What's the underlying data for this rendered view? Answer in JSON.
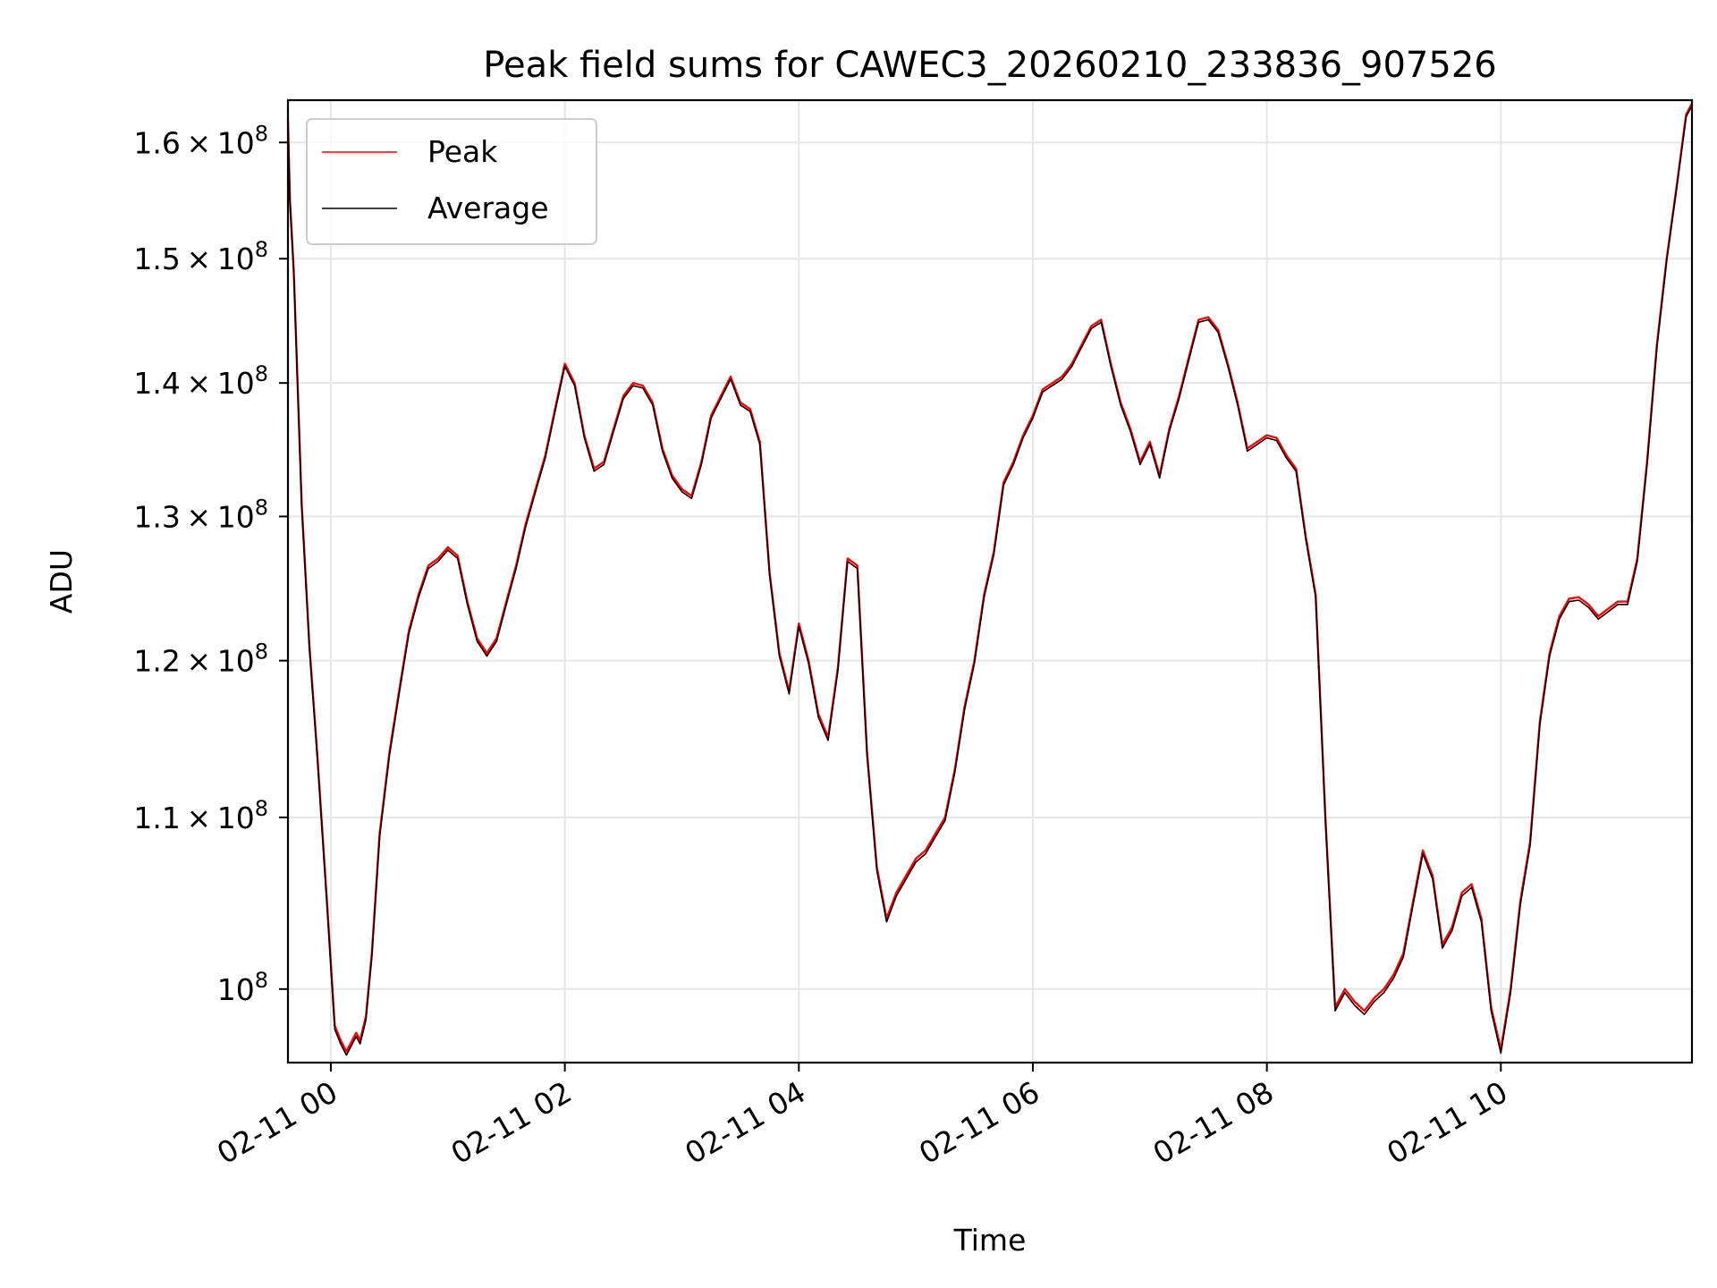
{
  "chart_data": {
    "type": "line",
    "title": "Peak field sums for CAWEC3_20260210_233836_907526",
    "xlabel": "Time",
    "ylabel": "ADU",
    "x_ticks": [
      {
        "x": "2026-02-11T00:00",
        "label": "02-11 00"
      },
      {
        "x": "2026-02-11T02:00",
        "label": "02-11 02"
      },
      {
        "x": "2026-02-11T04:00",
        "label": "02-11 04"
      },
      {
        "x": "2026-02-11T06:00",
        "label": "02-11 06"
      },
      {
        "x": "2026-02-11T08:00",
        "label": "02-11 08"
      },
      {
        "x": "2026-02-11T10:00",
        "label": "02-11 10"
      }
    ],
    "y_ticks": [
      {
        "value": 100000000,
        "mant": "",
        "exp": "8"
      },
      {
        "value": 110000000,
        "mant": "1.1",
        "exp": "8"
      },
      {
        "value": 120000000,
        "mant": "1.2",
        "exp": "8"
      },
      {
        "value": 130000000,
        "mant": "1.3",
        "exp": "8"
      },
      {
        "value": 140000000,
        "mant": "1.4",
        "exp": "8"
      },
      {
        "value": 150000000,
        "mant": "1.5",
        "exp": "8"
      },
      {
        "value": 160000000,
        "mant": "1.6",
        "exp": "8"
      }
    ],
    "xlim": [
      "2026-02-10T23:38",
      "2026-02-11T11:38"
    ],
    "ylim": [
      96000000,
      163800000
    ],
    "yscale": "log",
    "grid": true,
    "legend_position": "top-left",
    "series": [
      {
        "name": "Peak",
        "color": "#ff0000",
        "x": [
          "2026-02-10T23:38",
          "2026-02-10T23:39",
          "2026-02-10T23:41",
          "2026-02-10T23:45",
          "2026-02-10T23:49",
          "2026-02-10T23:53",
          "2026-02-10T23:58",
          "2026-02-11T00:02",
          "2026-02-11T00:05",
          "2026-02-11T00:08",
          "2026-02-11T00:10",
          "2026-02-11T00:13",
          "2026-02-11T00:15",
          "2026-02-11T00:18",
          "2026-02-11T00:21",
          "2026-02-11T00:25",
          "2026-02-11T00:30",
          "2026-02-11T00:35",
          "2026-02-11T00:40",
          "2026-02-11T00:45",
          "2026-02-11T00:50",
          "2026-02-11T00:55",
          "2026-02-11T01:00",
          "2026-02-11T01:05",
          "2026-02-11T01:10",
          "2026-02-11T01:15",
          "2026-02-11T01:20",
          "2026-02-11T01:25",
          "2026-02-11T01:30",
          "2026-02-11T01:35",
          "2026-02-11T01:40",
          "2026-02-11T01:45",
          "2026-02-11T01:50",
          "2026-02-11T01:55",
          "2026-02-11T02:00",
          "2026-02-11T02:05",
          "2026-02-11T02:10",
          "2026-02-11T02:15",
          "2026-02-11T02:20",
          "2026-02-11T02:25",
          "2026-02-11T02:30",
          "2026-02-11T02:35",
          "2026-02-11T02:40",
          "2026-02-11T02:45",
          "2026-02-11T02:50",
          "2026-02-11T02:55",
          "2026-02-11T03:00",
          "2026-02-11T03:05",
          "2026-02-11T03:10",
          "2026-02-11T03:15",
          "2026-02-11T03:20",
          "2026-02-11T03:25",
          "2026-02-11T03:30",
          "2026-02-11T03:35",
          "2026-02-11T03:40",
          "2026-02-11T03:45",
          "2026-02-11T03:50",
          "2026-02-11T03:55",
          "2026-02-11T04:00",
          "2026-02-11T04:05",
          "2026-02-11T04:10",
          "2026-02-11T04:15",
          "2026-02-11T04:20",
          "2026-02-11T04:25",
          "2026-02-11T04:30",
          "2026-02-11T04:35",
          "2026-02-11T04:40",
          "2026-02-11T04:45",
          "2026-02-11T04:50",
          "2026-02-11T04:55",
          "2026-02-11T05:00",
          "2026-02-11T05:05",
          "2026-02-11T05:10",
          "2026-02-11T05:15",
          "2026-02-11T05:20",
          "2026-02-11T05:25",
          "2026-02-11T05:30",
          "2026-02-11T05:35",
          "2026-02-11T05:40",
          "2026-02-11T05:45",
          "2026-02-11T05:50",
          "2026-02-11T05:55",
          "2026-02-11T06:00",
          "2026-02-11T06:05",
          "2026-02-11T06:10",
          "2026-02-11T06:15",
          "2026-02-11T06:20",
          "2026-02-11T06:25",
          "2026-02-11T06:30",
          "2026-02-11T06:35",
          "2026-02-11T06:40",
          "2026-02-11T06:45",
          "2026-02-11T06:50",
          "2026-02-11T06:55",
          "2026-02-11T07:00",
          "2026-02-11T07:05",
          "2026-02-11T07:10",
          "2026-02-11T07:15",
          "2026-02-11T07:20",
          "2026-02-11T07:25",
          "2026-02-11T07:30",
          "2026-02-11T07:35",
          "2026-02-11T07:40",
          "2026-02-11T07:45",
          "2026-02-11T07:50",
          "2026-02-11T07:55",
          "2026-02-11T08:00",
          "2026-02-11T08:05",
          "2026-02-11T08:10",
          "2026-02-11T08:15",
          "2026-02-11T08:20",
          "2026-02-11T08:25",
          "2026-02-11T08:30",
          "2026-02-11T08:35",
          "2026-02-11T08:40",
          "2026-02-11T08:45",
          "2026-02-11T08:50",
          "2026-02-11T08:55",
          "2026-02-11T09:00",
          "2026-02-11T09:05",
          "2026-02-11T09:10",
          "2026-02-11T09:15",
          "2026-02-11T09:20",
          "2026-02-11T09:25",
          "2026-02-11T09:30",
          "2026-02-11T09:35",
          "2026-02-11T09:40",
          "2026-02-11T09:45",
          "2026-02-11T09:50",
          "2026-02-11T09:55",
          "2026-02-11T10:00",
          "2026-02-11T10:05",
          "2026-02-11T10:10",
          "2026-02-11T10:15",
          "2026-02-11T10:20",
          "2026-02-11T10:25",
          "2026-02-11T10:30",
          "2026-02-11T10:35",
          "2026-02-11T10:40",
          "2026-02-11T10:45",
          "2026-02-11T10:50",
          "2026-02-11T10:55",
          "2026-02-11T11:00",
          "2026-02-11T11:05",
          "2026-02-11T11:10",
          "2026-02-11T11:15",
          "2026-02-11T11:20",
          "2026-02-11T11:25",
          "2026-02-11T11:30",
          "2026-02-11T11:35",
          "2026-02-11T11:38"
        ],
        "y": [
          162000000,
          155000000,
          149000000,
          131000000,
          121000000,
          114000000,
          105000000,
          98000000,
          97200000,
          96600000,
          97000000,
          97600000,
          97200000,
          98500000,
          102000000,
          109000000,
          114000000,
          118000000,
          122000000,
          124500000,
          126500000,
          127000000,
          127800000,
          127200000,
          124000000,
          121500000,
          120500000,
          121500000,
          124000000,
          126500000,
          129500000,
          132000000,
          134500000,
          138000000,
          141500000,
          140000000,
          136000000,
          133500000,
          134000000,
          136500000,
          139000000,
          140000000,
          139800000,
          138500000,
          135000000,
          133000000,
          132000000,
          131500000,
          134000000,
          137500000,
          139000000,
          140500000,
          138500000,
          138000000,
          135500000,
          126000000,
          120500000,
          118000000,
          122500000,
          120000000,
          116500000,
          115000000,
          119500000,
          127000000,
          126500000,
          114000000,
          107000000,
          104000000,
          105500000,
          106500000,
          107500000,
          108000000,
          109000000,
          110000000,
          113000000,
          117000000,
          120000000,
          124500000,
          127500000,
          132500000,
          134000000,
          136000000,
          137500000,
          139500000,
          140000000,
          140500000,
          141500000,
          143000000,
          144500000,
          145000000,
          141500000,
          138500000,
          136500000,
          134000000,
          135500000,
          133000000,
          136500000,
          139000000,
          142000000,
          145000000,
          145200000,
          144200000,
          141500000,
          138500000,
          135000000,
          135500000,
          136000000,
          135800000,
          134500000,
          133500000,
          128500000,
          124500000,
          110000000,
          99000000,
          100000000,
          99300000,
          98800000,
          99500000,
          100000000,
          100800000,
          102000000,
          105000000,
          108000000,
          106500000,
          102500000,
          103500000,
          105500000,
          106000000,
          104000000,
          99000000,
          96700000,
          100000000,
          105000000,
          108500000,
          116000000,
          120500000,
          123000000,
          124200000,
          124300000,
          123800000,
          123000000,
          123500000,
          124000000,
          124000000,
          127000000,
          134000000,
          143000000,
          150000000,
          156000000,
          162500000,
          163500000
        ]
      },
      {
        "name": "Average",
        "color": "#000000",
        "x": [
          "2026-02-10T23:38",
          "2026-02-10T23:39",
          "2026-02-10T23:41",
          "2026-02-10T23:45",
          "2026-02-10T23:49",
          "2026-02-10T23:53",
          "2026-02-10T23:58",
          "2026-02-11T00:02",
          "2026-02-11T00:05",
          "2026-02-11T00:08",
          "2026-02-11T00:10",
          "2026-02-11T00:13",
          "2026-02-11T00:15",
          "2026-02-11T00:18",
          "2026-02-11T00:21",
          "2026-02-11T00:25",
          "2026-02-11T00:30",
          "2026-02-11T00:35",
          "2026-02-11T00:40",
          "2026-02-11T00:45",
          "2026-02-11T00:50",
          "2026-02-11T00:55",
          "2026-02-11T01:00",
          "2026-02-11T01:05",
          "2026-02-11T01:10",
          "2026-02-11T01:15",
          "2026-02-11T01:20",
          "2026-02-11T01:25",
          "2026-02-11T01:30",
          "2026-02-11T01:35",
          "2026-02-11T01:40",
          "2026-02-11T01:45",
          "2026-02-11T01:50",
          "2026-02-11T01:55",
          "2026-02-11T02:00",
          "2026-02-11T02:05",
          "2026-02-11T02:10",
          "2026-02-11T02:15",
          "2026-02-11T02:20",
          "2026-02-11T02:25",
          "2026-02-11T02:30",
          "2026-02-11T02:35",
          "2026-02-11T02:40",
          "2026-02-11T02:45",
          "2026-02-11T02:50",
          "2026-02-11T02:55",
          "2026-02-11T03:00",
          "2026-02-11T03:05",
          "2026-02-11T03:10",
          "2026-02-11T03:15",
          "2026-02-11T03:20",
          "2026-02-11T03:25",
          "2026-02-11T03:30",
          "2026-02-11T03:35",
          "2026-02-11T03:40",
          "2026-02-11T03:45",
          "2026-02-11T03:50",
          "2026-02-11T03:55",
          "2026-02-11T04:00",
          "2026-02-11T04:05",
          "2026-02-11T04:10",
          "2026-02-11T04:15",
          "2026-02-11T04:20",
          "2026-02-11T04:25",
          "2026-02-11T04:30",
          "2026-02-11T04:35",
          "2026-02-11T04:40",
          "2026-02-11T04:45",
          "2026-02-11T04:50",
          "2026-02-11T04:55",
          "2026-02-11T05:00",
          "2026-02-11T05:05",
          "2026-02-11T05:10",
          "2026-02-11T05:15",
          "2026-02-11T05:20",
          "2026-02-11T05:25",
          "2026-02-11T05:30",
          "2026-02-11T05:35",
          "2026-02-11T05:40",
          "2026-02-11T05:45",
          "2026-02-11T05:50",
          "2026-02-11T05:55",
          "2026-02-11T06:00",
          "2026-02-11T06:05",
          "2026-02-11T06:10",
          "2026-02-11T06:15",
          "2026-02-11T06:20",
          "2026-02-11T06:25",
          "2026-02-11T06:30",
          "2026-02-11T06:35",
          "2026-02-11T06:40",
          "2026-02-11T06:45",
          "2026-02-11T06:50",
          "2026-02-11T06:55",
          "2026-02-11T07:00",
          "2026-02-11T07:05",
          "2026-02-11T07:10",
          "2026-02-11T07:15",
          "2026-02-11T07:20",
          "2026-02-11T07:25",
          "2026-02-11T07:30",
          "2026-02-11T07:35",
          "2026-02-11T07:40",
          "2026-02-11T07:45",
          "2026-02-11T07:50",
          "2026-02-11T07:55",
          "2026-02-11T08:00",
          "2026-02-11T08:05",
          "2026-02-11T08:10",
          "2026-02-11T08:15",
          "2026-02-11T08:20",
          "2026-02-11T08:25",
          "2026-02-11T08:30",
          "2026-02-11T08:35",
          "2026-02-11T08:40",
          "2026-02-11T08:45",
          "2026-02-11T08:50",
          "2026-02-11T08:55",
          "2026-02-11T09:00",
          "2026-02-11T09:05",
          "2026-02-11T09:10",
          "2026-02-11T09:15",
          "2026-02-11T09:20",
          "2026-02-11T09:25",
          "2026-02-11T09:30",
          "2026-02-11T09:35",
          "2026-02-11T09:40",
          "2026-02-11T09:45",
          "2026-02-11T09:50",
          "2026-02-11T09:55",
          "2026-02-11T10:00",
          "2026-02-11T10:05",
          "2026-02-11T10:10",
          "2026-02-11T10:15",
          "2026-02-11T10:20",
          "2026-02-11T10:25",
          "2026-02-11T10:30",
          "2026-02-11T10:35",
          "2026-02-11T10:40",
          "2026-02-11T10:45",
          "2026-02-11T10:50",
          "2026-02-11T10:55",
          "2026-02-11T11:00",
          "2026-02-11T11:05",
          "2026-02-11T11:10",
          "2026-02-11T11:15",
          "2026-02-11T11:20",
          "2026-02-11T11:25",
          "2026-02-11T11:30",
          "2026-02-11T11:35",
          "2026-02-11T11:38"
        ],
        "y": [
          161800000,
          154800000,
          148800000,
          130800000,
          120800000,
          113800000,
          104800000,
          97800000,
          97000000,
          96400000,
          96800000,
          97400000,
          97000000,
          98300000,
          101800000,
          108800000,
          113800000,
          117800000,
          121800000,
          124300000,
          126300000,
          126800000,
          127600000,
          127000000,
          123800000,
          121300000,
          120300000,
          121300000,
          123800000,
          126300000,
          129300000,
          131800000,
          134300000,
          137800000,
          141300000,
          139800000,
          135800000,
          133300000,
          133800000,
          136300000,
          138800000,
          139800000,
          139600000,
          138300000,
          134800000,
          132800000,
          131800000,
          131300000,
          133800000,
          137300000,
          138800000,
          140300000,
          138300000,
          137800000,
          135300000,
          125800000,
          120300000,
          117800000,
          122300000,
          119800000,
          116300000,
          114800000,
          119300000,
          126800000,
          126300000,
          113800000,
          106800000,
          103800000,
          105300000,
          106300000,
          107300000,
          107800000,
          108800000,
          109800000,
          112800000,
          116800000,
          119800000,
          124300000,
          127300000,
          132300000,
          133800000,
          135800000,
          137300000,
          139300000,
          139800000,
          140300000,
          141300000,
          142800000,
          144300000,
          144800000,
          141300000,
          138300000,
          136300000,
          133800000,
          135300000,
          132800000,
          136300000,
          138800000,
          141800000,
          144800000,
          145000000,
          144000000,
          141300000,
          138300000,
          134800000,
          135300000,
          135800000,
          135600000,
          134300000,
          133300000,
          128300000,
          124300000,
          109800000,
          98800000,
          99800000,
          99100000,
          98600000,
          99300000,
          99800000,
          100600000,
          101800000,
          104800000,
          107800000,
          106300000,
          102300000,
          103300000,
          105300000,
          105800000,
          103800000,
          98800000,
          96500000,
          99800000,
          104800000,
          108300000,
          115800000,
          120300000,
          122800000,
          124000000,
          124100000,
          123600000,
          122800000,
          123300000,
          123800000,
          123800000,
          126800000,
          133800000,
          142800000,
          149800000,
          155800000,
          162300000,
          163300000
        ]
      }
    ]
  }
}
